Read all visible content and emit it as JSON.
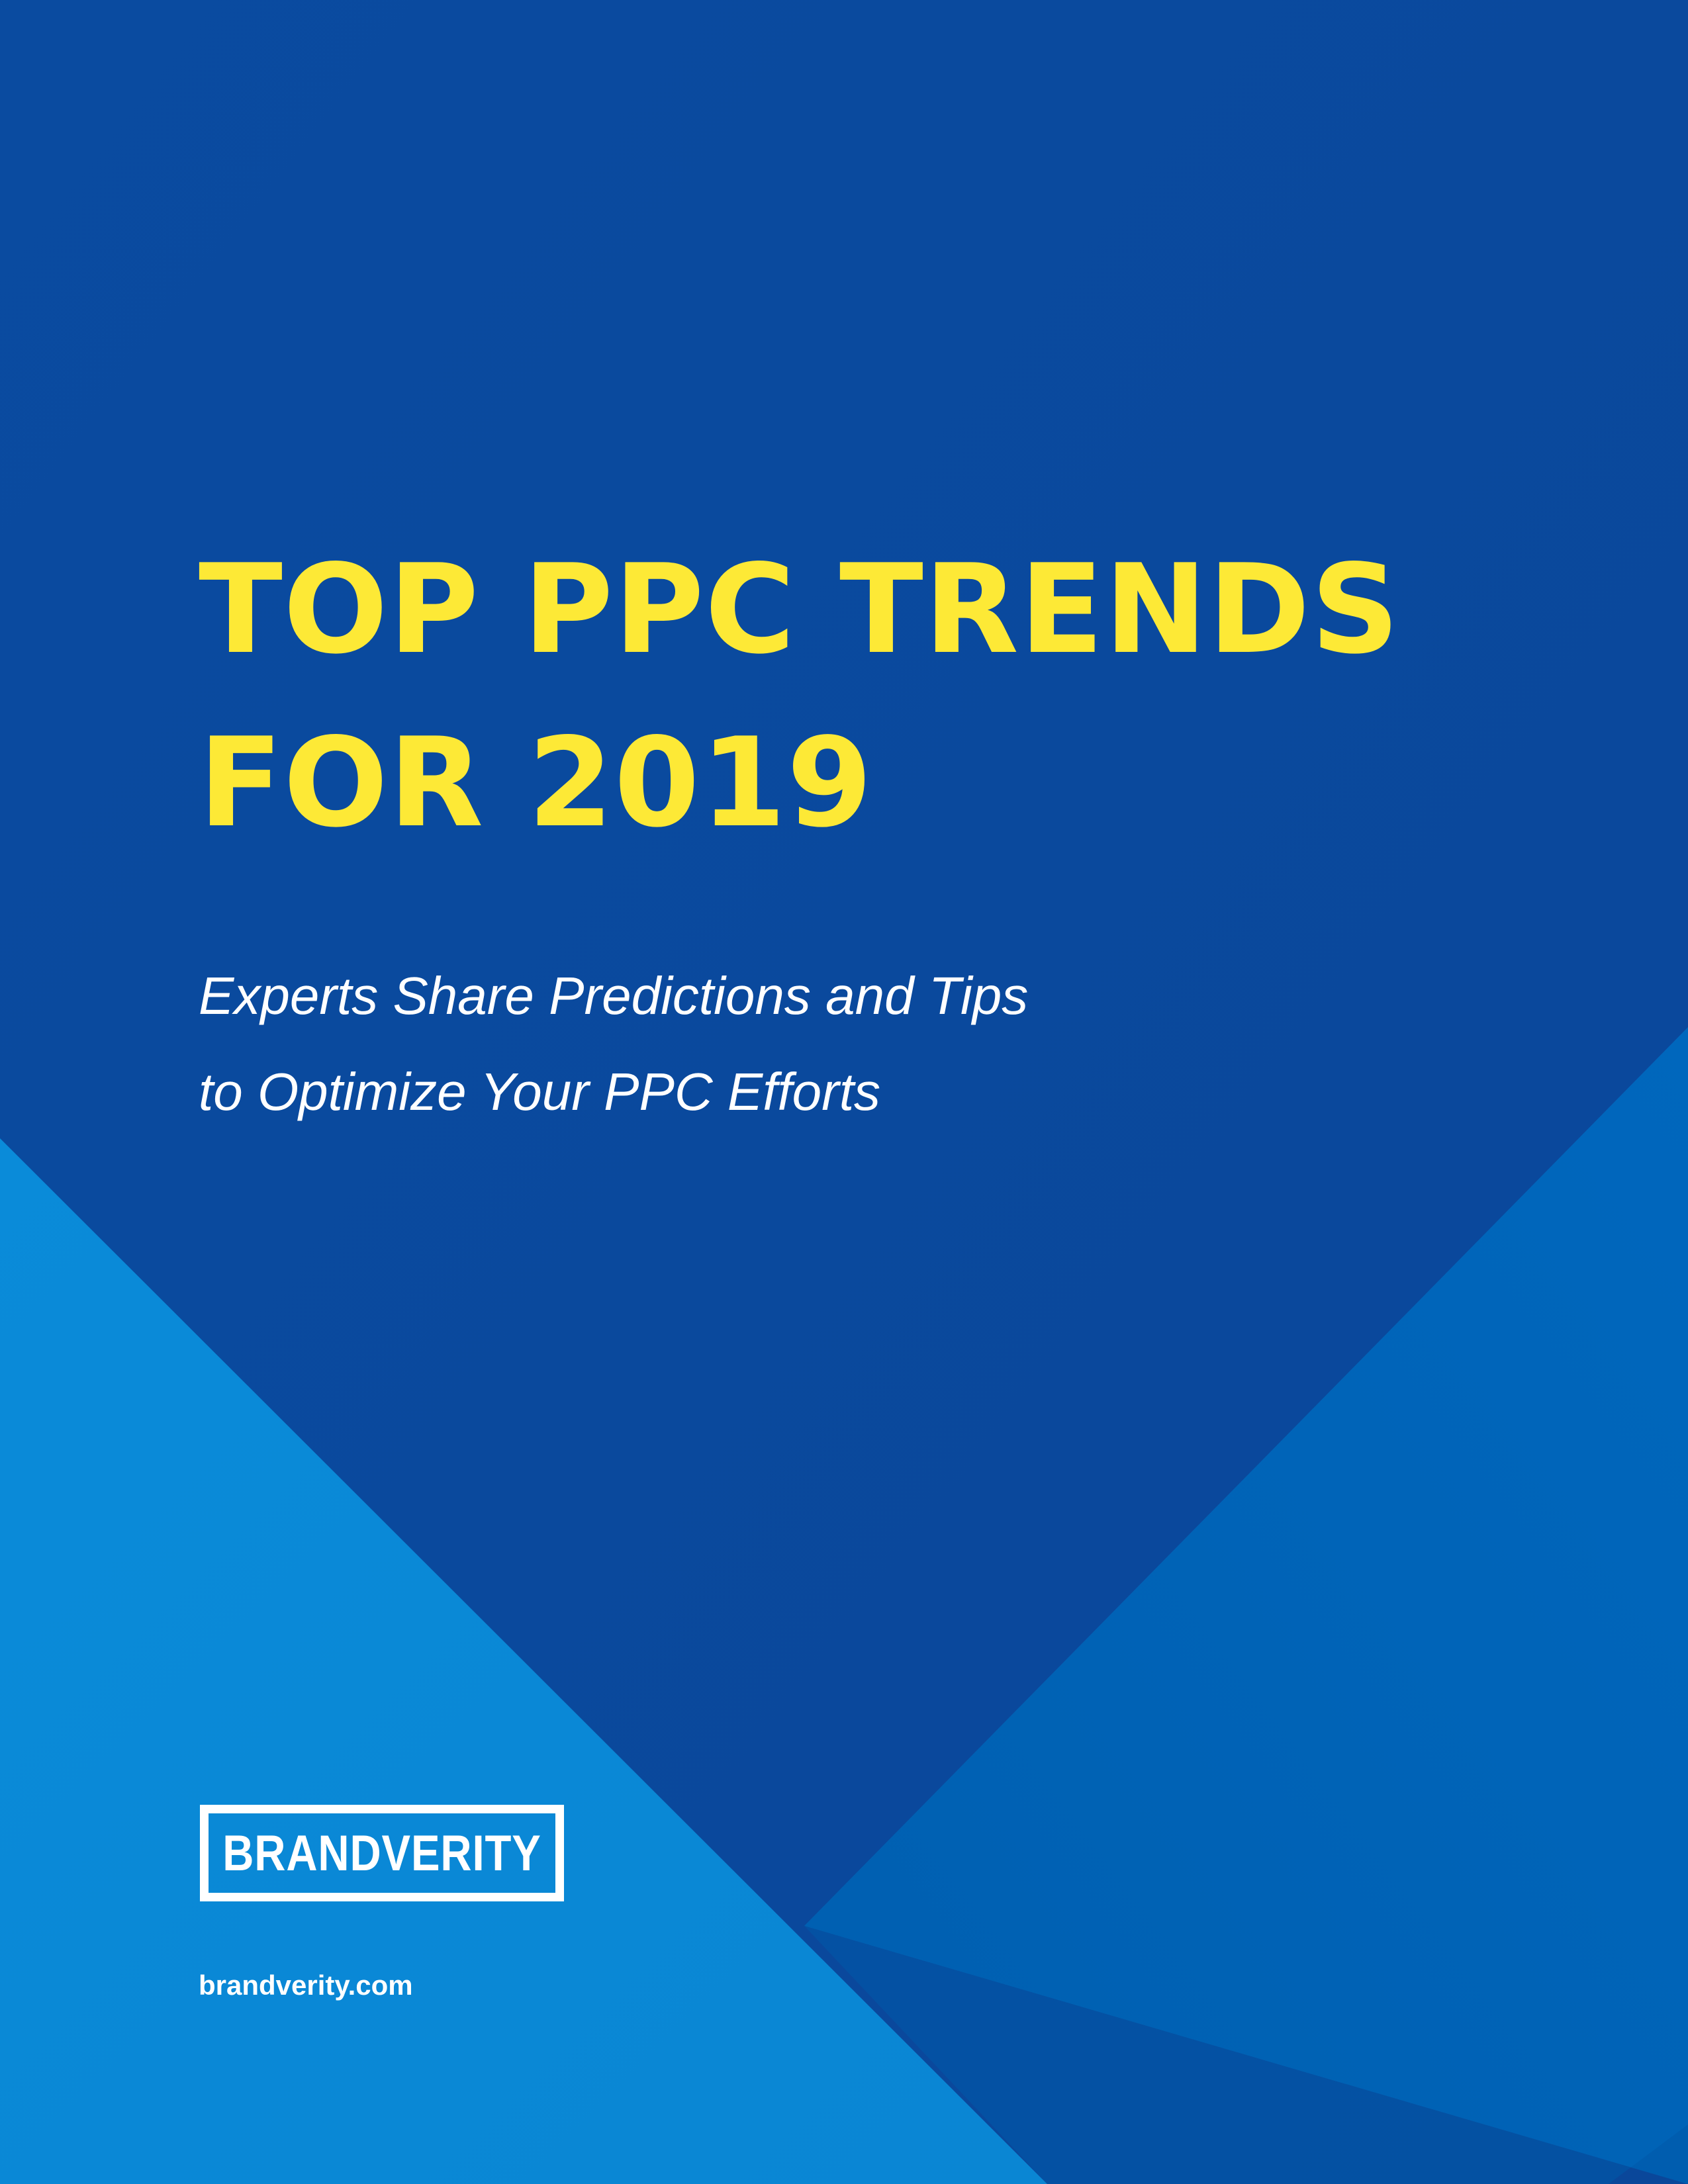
{
  "cover": {
    "title_lines": [
      "TOP PPC TRENDS",
      "FOR 2019"
    ],
    "subtitle_lines": [
      "Experts Share Predictions and Tips",
      "to Optimize Your PPC Efforts"
    ],
    "logo_text": "BRANDVERITY",
    "website": "brandverity.com"
  },
  "colors": {
    "background_dark": "#0a4a9c",
    "background_mid": "#0063b7",
    "background_light": "#008ad8",
    "title": "#fde936",
    "text": "#ffffff"
  },
  "icons": {
    "logo": "brandverity-logo"
  }
}
